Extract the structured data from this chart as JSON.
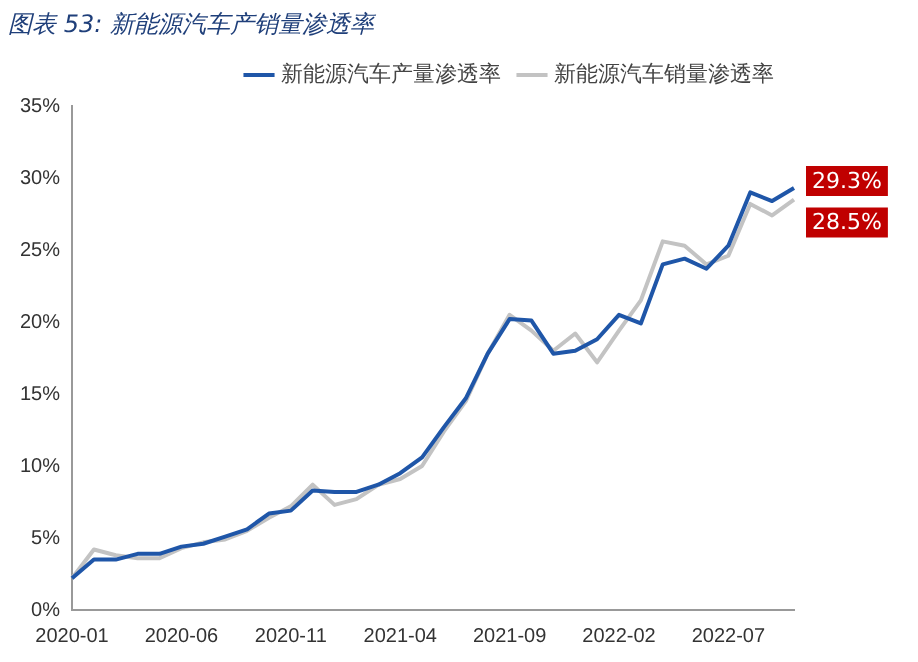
{
  "chart_data": {
    "type": "line",
    "title": "图表 53: 新能源汽车产销量渗透率",
    "categories": [
      "2020-01",
      null,
      null,
      null,
      null,
      "2020-06",
      null,
      null,
      null,
      null,
      "2020-11",
      null,
      null,
      null,
      null,
      "2021-04",
      null,
      null,
      null,
      null,
      "2021-09",
      null,
      null,
      null,
      null,
      "2022-02",
      null,
      null,
      null,
      null,
      "2022-07",
      null,
      null,
      null
    ],
    "series": [
      {
        "name": "新能源汽车产量渗透率",
        "color": "#1f56a8",
        "values": [
          2.2,
          3.5,
          3.5,
          3.9,
          3.9,
          4.4,
          4.6,
          5.1,
          5.6,
          6.7,
          6.9,
          8.3,
          8.2,
          8.2,
          8.7,
          9.5,
          10.6,
          12.7,
          14.7,
          17.8,
          20.2,
          20.1,
          17.8,
          18.0,
          18.8,
          20.5,
          19.9,
          24.0,
          24.4,
          23.7,
          25.3,
          29.0,
          28.4,
          29.3
        ],
        "value_labels": [
          null,
          null,
          null,
          null,
          null,
          null,
          null,
          null,
          null,
          null,
          null,
          null,
          null,
          null,
          null,
          null,
          null,
          null,
          null,
          null,
          null,
          null,
          null,
          null,
          null,
          null,
          null,
          null,
          null,
          null,
          null,
          null,
          null,
          "29.3%"
        ]
      },
      {
        "name": "新能源汽车销量渗透率",
        "color": "#c3c3c3",
        "values": [
          2.2,
          4.2,
          3.8,
          3.6,
          3.6,
          4.3,
          4.7,
          4.9,
          5.5,
          6.4,
          7.2,
          8.7,
          7.3,
          7.7,
          8.7,
          9.1,
          10.0,
          12.4,
          14.5,
          17.8,
          20.5,
          19.4,
          18.0,
          19.2,
          17.2,
          19.4,
          21.5,
          25.6,
          25.3,
          24.0,
          24.6,
          28.2,
          27.4,
          28.5
        ],
        "value_labels": [
          null,
          null,
          null,
          null,
          null,
          null,
          null,
          null,
          null,
          null,
          null,
          null,
          null,
          null,
          null,
          null,
          null,
          null,
          null,
          null,
          null,
          null,
          null,
          null,
          null,
          null,
          null,
          null,
          null,
          null,
          null,
          null,
          null,
          "28.5%"
        ]
      }
    ],
    "ylim": [
      0,
      35
    ],
    "yticks": [
      {
        "value": 0,
        "label": "0%"
      },
      {
        "value": 5,
        "label": "5%"
      },
      {
        "value": 10,
        "label": "10%"
      },
      {
        "value": 15,
        "label": "15%"
      },
      {
        "value": 20,
        "label": "20%"
      },
      {
        "value": 25,
        "label": "25%"
      },
      {
        "value": 30,
        "label": "30%"
      },
      {
        "value": 35,
        "label": "35%"
      }
    ],
    "grid": false,
    "legend": "top right",
    "marker": "none",
    "line_style": "solid"
  }
}
